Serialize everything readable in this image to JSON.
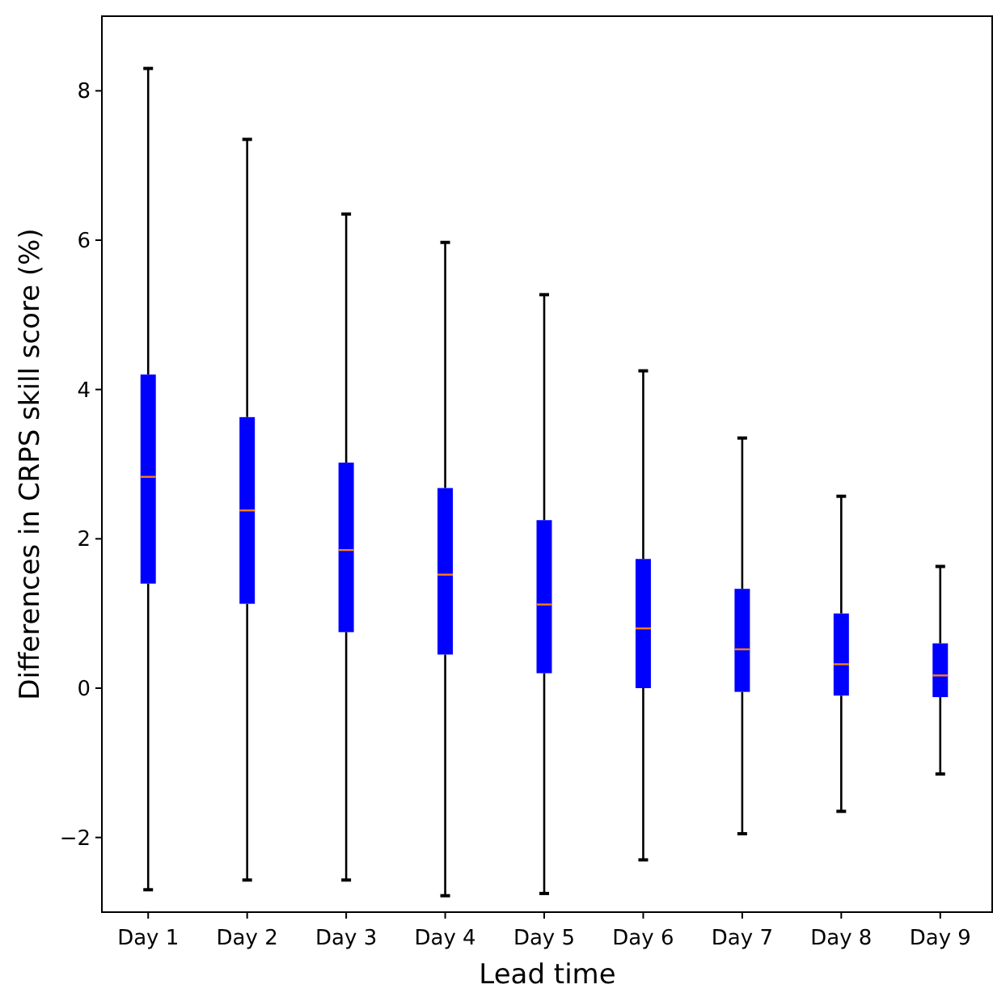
{
  "chart_data": {
    "type": "box",
    "xlabel": "Lead time",
    "ylabel": "Differences in CRPS skill score (%)",
    "categories": [
      "Day 1",
      "Day 2",
      "Day 3",
      "Day 4",
      "Day 5",
      "Day 6",
      "Day 7",
      "Day 8",
      "Day 9"
    ],
    "color": "#0000ff",
    "boxes": [
      {
        "low": -2.7,
        "q1": 1.4,
        "median": 2.83,
        "q3": 4.2,
        "high": 8.3
      },
      {
        "low": -2.57,
        "q1": 1.13,
        "median": 2.38,
        "q3": 3.63,
        "high": 7.35
      },
      {
        "low": -2.57,
        "q1": 0.75,
        "median": 1.85,
        "q3": 3.02,
        "high": 6.35
      },
      {
        "low": -2.78,
        "q1": 0.45,
        "median": 1.52,
        "q3": 2.68,
        "high": 5.97
      },
      {
        "low": -2.75,
        "q1": 0.2,
        "median": 1.12,
        "q3": 2.25,
        "high": 5.27
      },
      {
        "low": -2.3,
        "q1": 0.0,
        "median": 0.8,
        "q3": 1.73,
        "high": 4.25
      },
      {
        "low": -1.95,
        "q1": -0.05,
        "median": 0.52,
        "q3": 1.33,
        "high": 3.35
      },
      {
        "low": -1.65,
        "q1": -0.1,
        "median": 0.32,
        "q3": 1.0,
        "high": 2.57
      },
      {
        "low": -1.15,
        "q1": -0.12,
        "median": 0.17,
        "q3": 0.6,
        "high": 1.63
      }
    ],
    "ylim": [
      -3,
      9
    ],
    "yticks": [
      {
        "value": -2,
        "label": "−2"
      },
      0,
      2,
      4,
      6,
      8
    ],
    "grid": false
  }
}
